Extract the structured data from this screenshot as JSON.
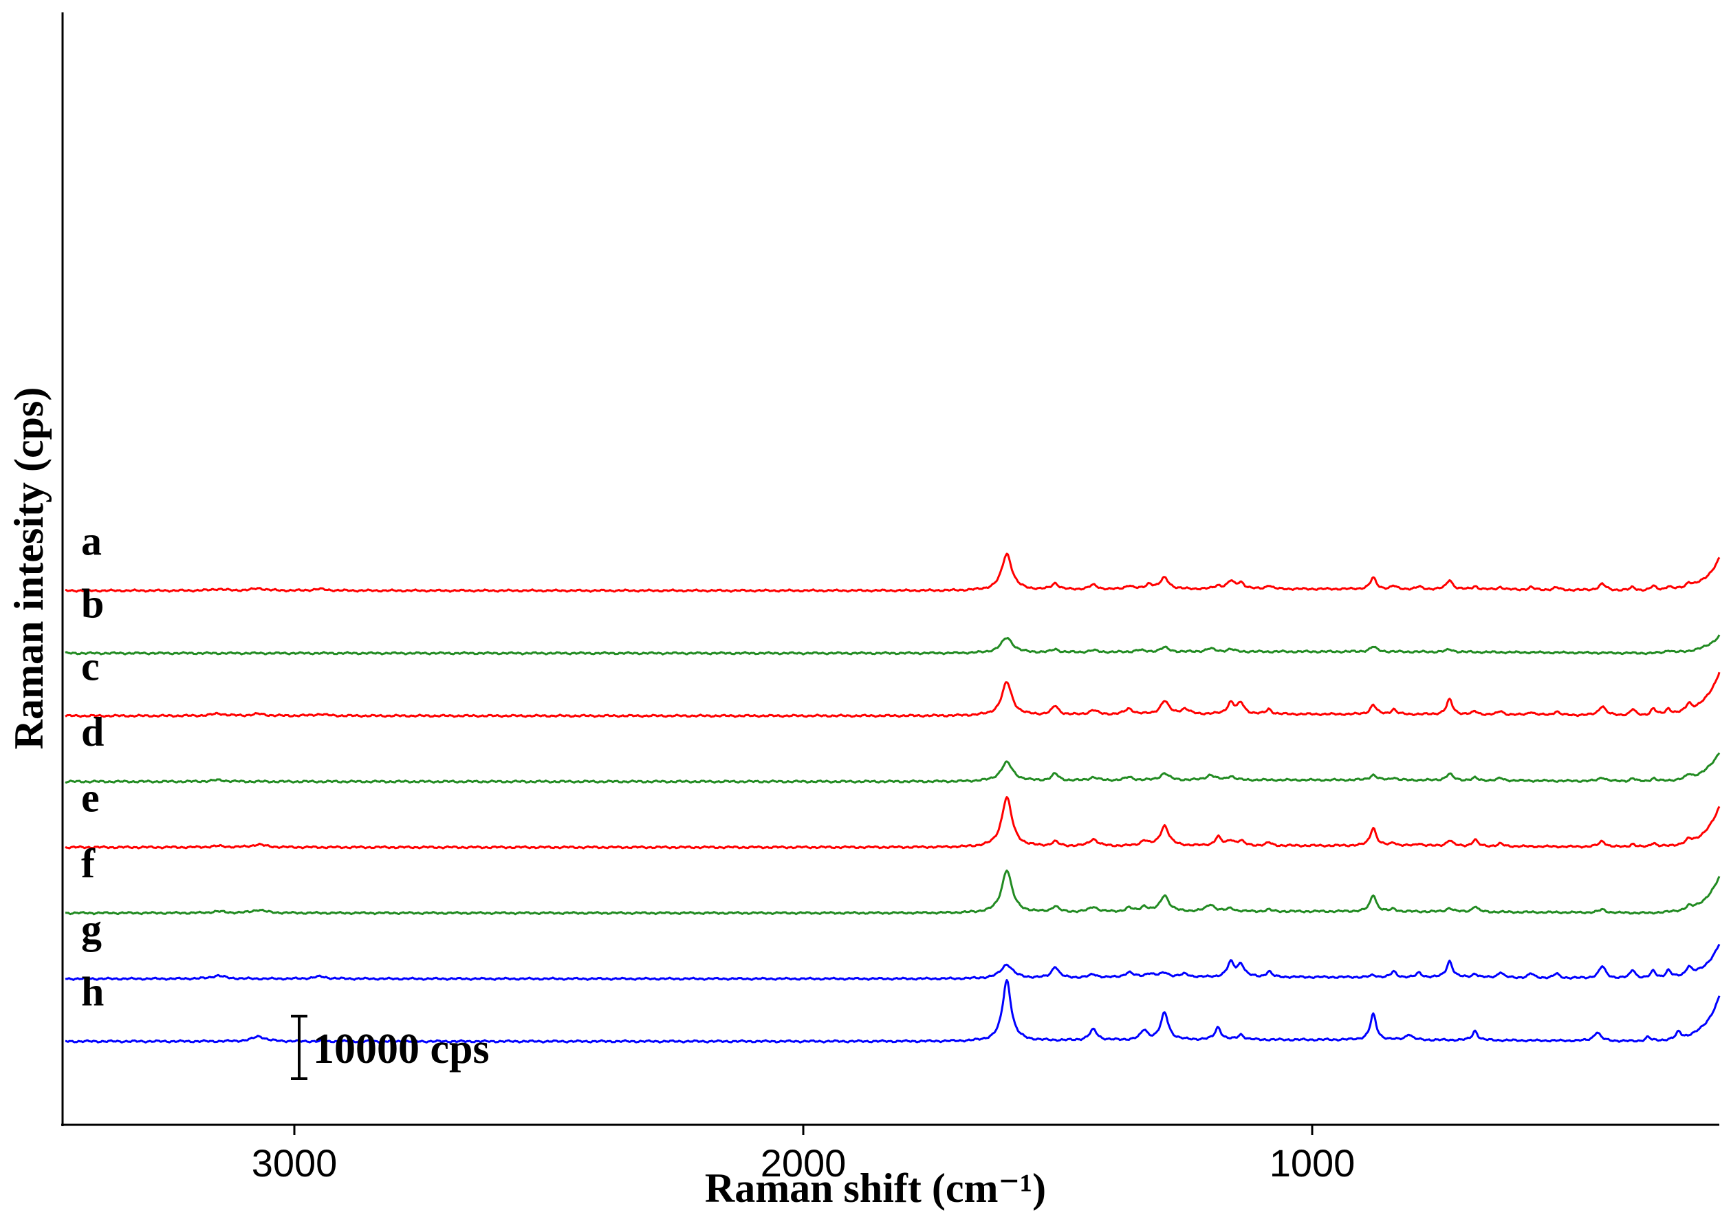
{
  "chart_data": {
    "type": "line",
    "title": "",
    "xlabel": "Raman shift (cm⁻¹)",
    "ylabel": "Raman intesity (cps)",
    "x_reversed": true,
    "xlim": [
      3450,
      200
    ],
    "xticks": [
      3000,
      2000,
      1000
    ],
    "xtick_labels": [
      "3000",
      "2000",
      "1000"
    ],
    "scale_bar": {
      "label": "10000 cps",
      "value_cps": 10000
    },
    "series": [
      {
        "name": "a",
        "color": "#ff0000",
        "offset_cps": 85000,
        "tail": 5200,
        "peaks": [
          [
            3150,
            250,
            15
          ],
          [
            3070,
            350,
            15
          ],
          [
            2950,
            250,
            15
          ],
          [
            1600,
            5800,
            12
          ],
          [
            1505,
            1000,
            8
          ],
          [
            1430,
            700,
            10
          ],
          [
            1360,
            600,
            8
          ],
          [
            1320,
            800,
            8
          ],
          [
            1290,
            1800,
            10
          ],
          [
            1185,
            500,
            8
          ],
          [
            1160,
            1200,
            8
          ],
          [
            1140,
            1000,
            8
          ],
          [
            1085,
            600,
            6
          ],
          [
            880,
            1800,
            7
          ],
          [
            840,
            500,
            6
          ],
          [
            790,
            400,
            6
          ],
          [
            730,
            1500,
            7
          ],
          [
            680,
            500,
            6
          ],
          [
            630,
            400,
            6
          ],
          [
            570,
            400,
            6
          ],
          [
            520,
            400,
            6
          ],
          [
            430,
            1000,
            8
          ],
          [
            370,
            500,
            6
          ],
          [
            330,
            700,
            6
          ],
          [
            300,
            500,
            6
          ],
          [
            260,
            700,
            6
          ]
        ]
      },
      {
        "name": "b",
        "color": "#228b22",
        "offset_cps": 75000,
        "tail": 2800,
        "peaks": [
          [
            1600,
            2400,
            14
          ],
          [
            1505,
            500,
            8
          ],
          [
            1430,
            300,
            10
          ],
          [
            1340,
            300,
            10
          ],
          [
            1290,
            700,
            10
          ],
          [
            1200,
            500,
            10
          ],
          [
            1160,
            400,
            8
          ],
          [
            880,
            800,
            8
          ],
          [
            730,
            400,
            8
          ],
          [
            300,
            400,
            6
          ]
        ]
      },
      {
        "name": "c",
        "color": "#ff0000",
        "offset_cps": 65000,
        "tail": 7000,
        "peaks": [
          [
            3150,
            350,
            15
          ],
          [
            3070,
            300,
            15
          ],
          [
            2950,
            250,
            15
          ],
          [
            1600,
            5300,
            12
          ],
          [
            1505,
            1400,
            8
          ],
          [
            1430,
            700,
            10
          ],
          [
            1360,
            900,
            10
          ],
          [
            1290,
            2100,
            10
          ],
          [
            1250,
            800,
            10
          ],
          [
            1160,
            1800,
            8
          ],
          [
            1140,
            1700,
            8
          ],
          [
            1085,
            800,
            6
          ],
          [
            880,
            1500,
            7
          ],
          [
            840,
            800,
            6
          ],
          [
            730,
            2400,
            7
          ],
          [
            680,
            500,
            6
          ],
          [
            630,
            600,
            6
          ],
          [
            570,
            500,
            6
          ],
          [
            520,
            600,
            6
          ],
          [
            430,
            1500,
            8
          ],
          [
            370,
            1000,
            6
          ],
          [
            330,
            1100,
            6
          ],
          [
            300,
            900,
            6
          ],
          [
            260,
            1200,
            6
          ]
        ]
      },
      {
        "name": "d",
        "color": "#228b22",
        "offset_cps": 54500,
        "tail": 4700,
        "peaks": [
          [
            3150,
            250,
            15
          ],
          [
            1600,
            3000,
            14
          ],
          [
            1505,
            1100,
            8
          ],
          [
            1430,
            500,
            10
          ],
          [
            1360,
            500,
            10
          ],
          [
            1290,
            1100,
            10
          ],
          [
            1200,
            800,
            10
          ],
          [
            1160,
            600,
            8
          ],
          [
            880,
            800,
            8
          ],
          [
            840,
            400,
            6
          ],
          [
            730,
            1000,
            8
          ],
          [
            680,
            400,
            6
          ],
          [
            630,
            400,
            6
          ],
          [
            430,
            600,
            8
          ],
          [
            370,
            500,
            6
          ],
          [
            330,
            500,
            6
          ],
          [
            260,
            600,
            6
          ]
        ]
      },
      {
        "name": "e",
        "color": "#ff0000",
        "offset_cps": 44000,
        "tail": 6500,
        "peaks": [
          [
            3150,
            200,
            15
          ],
          [
            3070,
            450,
            15
          ],
          [
            1600,
            7900,
            12
          ],
          [
            1505,
            700,
            8
          ],
          [
            1430,
            1100,
            10
          ],
          [
            1330,
            800,
            8
          ],
          [
            1290,
            3200,
            10
          ],
          [
            1185,
            1400,
            7
          ],
          [
            1160,
            800,
            8
          ],
          [
            1140,
            700,
            8
          ],
          [
            1085,
            500,
            6
          ],
          [
            880,
            2900,
            7
          ],
          [
            840,
            500,
            6
          ],
          [
            790,
            400,
            6
          ],
          [
            730,
            900,
            7
          ],
          [
            680,
            1000,
            6
          ],
          [
            630,
            400,
            6
          ],
          [
            430,
            900,
            8
          ],
          [
            370,
            500,
            6
          ],
          [
            330,
            700,
            6
          ],
          [
            260,
            600,
            6
          ]
        ]
      },
      {
        "name": "f",
        "color": "#228b22",
        "offset_cps": 33500,
        "tail": 5800,
        "peaks": [
          [
            3150,
            250,
            15
          ],
          [
            3070,
            500,
            15
          ],
          [
            1600,
            6800,
            12
          ],
          [
            1505,
            900,
            8
          ],
          [
            1430,
            800,
            10
          ],
          [
            1360,
            600,
            8
          ],
          [
            1330,
            800,
            8
          ],
          [
            1290,
            2600,
            10
          ],
          [
            1200,
            1100,
            10
          ],
          [
            1160,
            500,
            8
          ],
          [
            1085,
            300,
            6
          ],
          [
            880,
            2700,
            7
          ],
          [
            840,
            400,
            6
          ],
          [
            730,
            600,
            7
          ],
          [
            680,
            900,
            6
          ],
          [
            430,
            500,
            8
          ],
          [
            260,
            500,
            6
          ]
        ]
      },
      {
        "name": "g",
        "color": "#0000ff",
        "offset_cps": 23000,
        "tail": 5500,
        "peaks": [
          [
            3150,
            500,
            15
          ],
          [
            2950,
            350,
            15
          ],
          [
            1600,
            2200,
            14
          ],
          [
            1505,
            1800,
            8
          ],
          [
            1430,
            500,
            10
          ],
          [
            1360,
            800,
            10
          ],
          [
            1320,
            600,
            10
          ],
          [
            1290,
            700,
            10
          ],
          [
            1250,
            500,
            10
          ],
          [
            1160,
            2300,
            8
          ],
          [
            1140,
            2000,
            8
          ],
          [
            1085,
            900,
            6
          ],
          [
            880,
            300,
            7
          ],
          [
            840,
            900,
            6
          ],
          [
            790,
            700,
            6
          ],
          [
            730,
            2600,
            7
          ],
          [
            680,
            600,
            6
          ],
          [
            630,
            900,
            6
          ],
          [
            570,
            700,
            6
          ],
          [
            520,
            700,
            6
          ],
          [
            430,
            1900,
            8
          ],
          [
            370,
            1400,
            6
          ],
          [
            330,
            1200,
            6
          ],
          [
            300,
            1100,
            6
          ],
          [
            260,
            1300,
            6
          ]
        ]
      },
      {
        "name": "h",
        "color": "#0000ff",
        "offset_cps": 13000,
        "tail": 7200,
        "peaks": [
          [
            3070,
            800,
            15
          ],
          [
            1600,
            9700,
            10
          ],
          [
            1430,
            1700,
            9
          ],
          [
            1330,
            1500,
            8
          ],
          [
            1290,
            4300,
            9
          ],
          [
            1185,
            2000,
            7
          ],
          [
            1140,
            800,
            7
          ],
          [
            880,
            4100,
            7
          ],
          [
            810,
            900,
            7
          ],
          [
            680,
            1500,
            6
          ],
          [
            440,
            1400,
            8
          ],
          [
            340,
            700,
            6
          ],
          [
            280,
            1100,
            6
          ]
        ]
      }
    ]
  }
}
